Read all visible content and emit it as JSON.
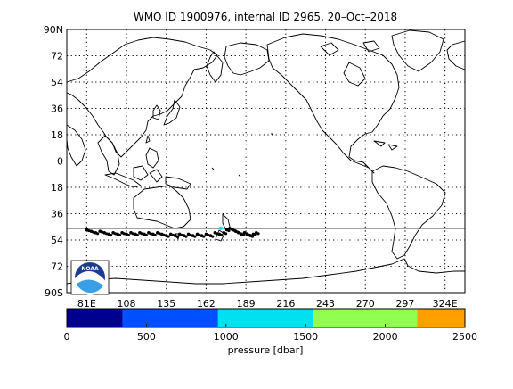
{
  "title": "WMO ID 1900976, internal ID 2965, 20–Oct–2018",
  "map": {
    "lat_ticks": [
      "90N",
      "72",
      "54",
      "36",
      "18",
      "0",
      "18",
      "36",
      "54",
      "72",
      "90S"
    ],
    "lon_ticks": [
      "81E",
      "108",
      "135",
      "162",
      "189",
      "216",
      "243",
      "270",
      "297",
      "324E"
    ],
    "grid": "dotted",
    "track_latitude_line": 46,
    "logo_text": "NOAA",
    "logo_position": "bottom-left"
  },
  "colorbar": {
    "label": "pressure [dbar]",
    "ticks": [
      "0",
      "500",
      "1000",
      "1500",
      "2000",
      "2500"
    ],
    "range": [
      0,
      2500
    ],
    "segments": [
      {
        "from": 0,
        "to": 350,
        "color": "#000090"
      },
      {
        "from": 350,
        "to": 950,
        "color": "#0050ff"
      },
      {
        "from": 950,
        "to": 1550,
        "color": "#00e0f0"
      },
      {
        "from": 1550,
        "to": 2200,
        "color": "#90ff50"
      },
      {
        "from": 2200,
        "to": 2500,
        "color": "#ffa000"
      }
    ]
  },
  "track": {
    "color": "#000000",
    "highlight_color": "#00e0f0",
    "points": [
      [
        81,
        -47
      ],
      [
        84,
        -48
      ],
      [
        87,
        -49
      ],
      [
        90,
        -48
      ],
      [
        93,
        -49
      ],
      [
        96,
        -50
      ],
      [
        99,
        -49
      ],
      [
        102,
        -50
      ],
      [
        105,
        -49
      ],
      [
        108,
        -50
      ],
      [
        111,
        -49
      ],
      [
        114,
        -50
      ],
      [
        117,
        -49
      ],
      [
        120,
        -50
      ],
      [
        123,
        -49
      ],
      [
        126,
        -50
      ],
      [
        129,
        -49
      ],
      [
        132,
        -50
      ],
      [
        135,
        -51
      ],
      [
        138,
        -50
      ],
      [
        141,
        -51
      ],
      [
        144,
        -50
      ],
      [
        147,
        -51
      ],
      [
        150,
        -50
      ],
      [
        153,
        -51
      ],
      [
        156,
        -50
      ],
      [
        159,
        -51
      ],
      [
        162,
        -50
      ],
      [
        165,
        -51
      ],
      [
        168,
        -49
      ],
      [
        171,
        -50
      ],
      [
        174,
        -49
      ],
      [
        176,
        -47
      ],
      [
        178,
        -46
      ],
      [
        180,
        -47
      ],
      [
        182,
        -48
      ],
      [
        184,
        -49
      ],
      [
        186,
        -50
      ],
      [
        188,
        -49
      ],
      [
        190,
        -50
      ],
      [
        192,
        -51
      ],
      [
        194,
        -50
      ],
      [
        196,
        -49
      ]
    ],
    "highlight_point": [
      172,
      -46
    ]
  }
}
